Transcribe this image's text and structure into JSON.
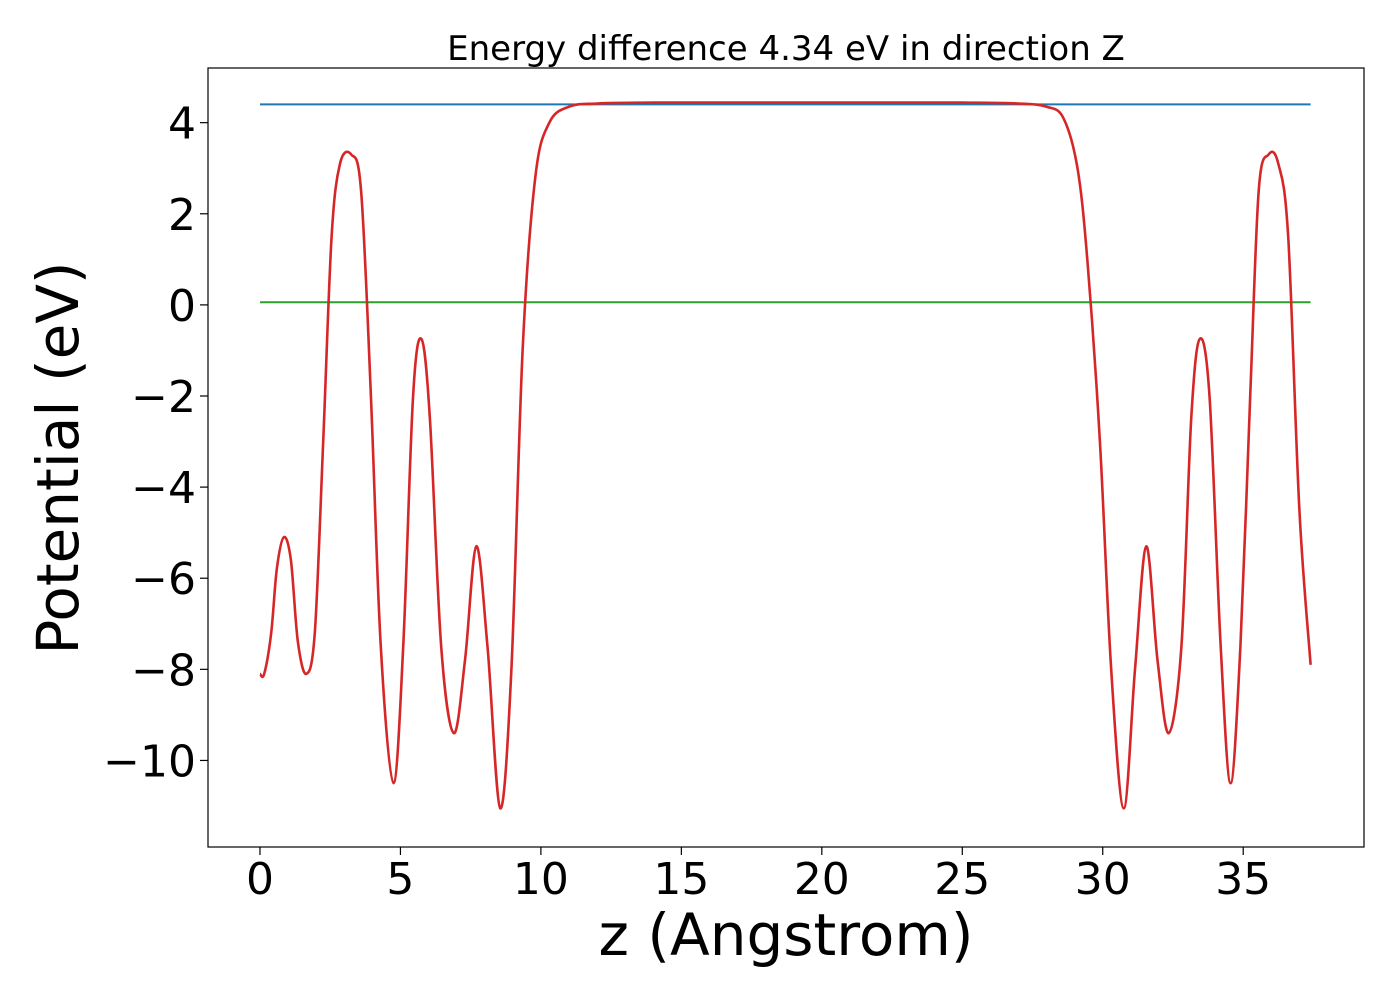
{
  "chart_data": {
    "type": "line",
    "title": "Energy difference 4.34 eV in direction Z",
    "xlabel": "z (Angstrom)",
    "ylabel": "Potential (eV)",
    "xlim": [
      -1.85,
      39.3
    ],
    "ylim": [
      -11.9,
      5.2
    ],
    "xticks": [
      0,
      5,
      10,
      15,
      20,
      25,
      30,
      35
    ],
    "xtick_labels": [
      "0",
      "5",
      "10",
      "15",
      "20",
      "25",
      "30",
      "35"
    ],
    "yticks": [
      4,
      2,
      0,
      -2,
      -4,
      -6,
      -8,
      -10
    ],
    "ytick_labels": [
      "4",
      "2",
      "0",
      "−2",
      "−4",
      "−6",
      "−8",
      "−10"
    ],
    "grid": false,
    "legend": "none",
    "series": [
      {
        "color": "#d62728",
        "x": [
          0,
          0.15,
          0.4,
          0.6,
          0.85,
          1.1,
          1.35,
          1.65,
          1.95,
          2.25,
          2.55,
          2.85,
          3.25,
          3.6,
          3.95,
          4.3,
          4.75,
          5.1,
          5.45,
          5.75,
          6.05,
          6.45,
          6.9,
          7.3,
          7.7,
          8.1,
          8.55,
          8.95,
          9.35,
          9.8,
          10.3,
          11.0,
          12.0,
          14.0,
          18.0,
          22.0,
          25.0,
          27.0,
          28.0,
          28.6,
          29.1,
          29.45,
          29.9,
          30.3,
          30.75,
          31.15,
          31.55,
          31.95,
          32.35,
          32.8,
          33.15,
          33.45,
          33.8,
          34.2,
          34.55,
          34.9,
          35.25,
          35.55,
          35.9,
          36.25,
          36.6,
          37.0,
          37.4
        ],
        "y": [
          -8.1,
          -8.1,
          -7.2,
          -5.8,
          -5.1,
          -5.6,
          -7.4,
          -8.1,
          -7.2,
          -3.0,
          1.5,
          3.1,
          3.3,
          2.5,
          -2.0,
          -7.5,
          -10.5,
          -7.5,
          -2.0,
          -0.75,
          -2.5,
          -7.5,
          -9.4,
          -7.8,
          -5.3,
          -7.5,
          -11.05,
          -8.0,
          -1.0,
          2.8,
          4.0,
          4.35,
          4.42,
          4.44,
          4.44,
          4.44,
          4.44,
          4.42,
          4.35,
          4.1,
          3.0,
          1.0,
          -3.0,
          -8.0,
          -11.05,
          -8.0,
          -5.3,
          -7.8,
          -9.4,
          -7.5,
          -2.5,
          -0.75,
          -2.0,
          -7.5,
          -10.5,
          -7.5,
          -2.0,
          2.5,
          3.3,
          3.1,
          1.5,
          -4.5,
          -7.9
        ]
      },
      {
        "color": "#1f77b4",
        "x": [
          0,
          37.4
        ],
        "y": [
          4.4,
          4.4
        ]
      },
      {
        "color": "#2ca02c",
        "x": [
          0,
          37.4
        ],
        "y": [
          0.06,
          0.06
        ]
      }
    ]
  }
}
